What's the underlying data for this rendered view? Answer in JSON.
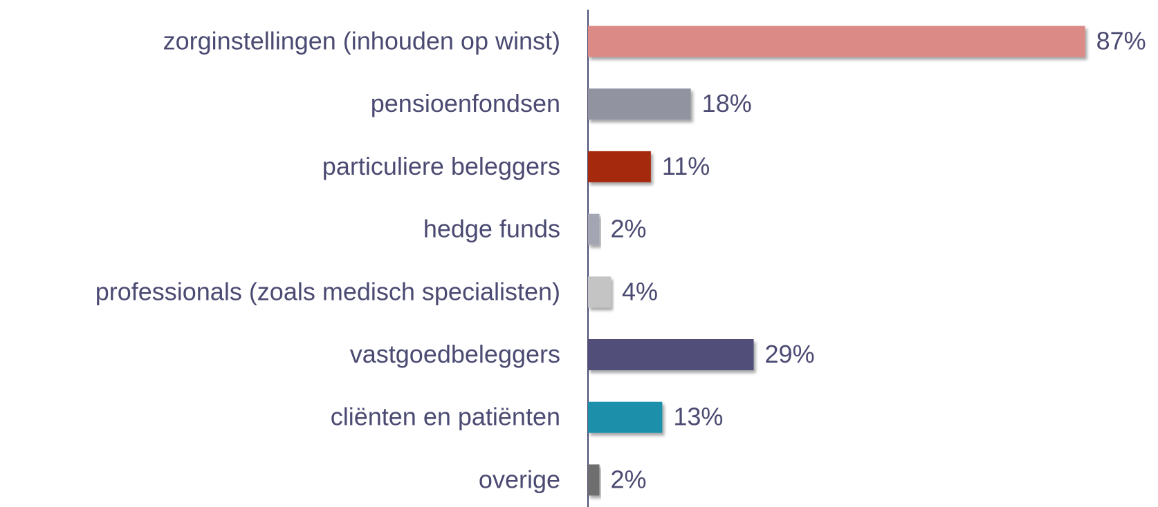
{
  "chart_data": {
    "type": "bar",
    "orientation": "horizontal",
    "categories": [
      "zorginstellingen (inhouden op winst)",
      "pensioenfondsen",
      "particuliere beleggers",
      "hedge funds",
      "professionals (zoals medisch specialisten)",
      "vastgoedbeleggers",
      "cliënten en patiënten",
      "overige"
    ],
    "values": [
      87,
      18,
      11,
      2,
      4,
      29,
      13,
      2
    ],
    "value_labels": [
      "87%",
      "18%",
      "11%",
      "2%",
      "4%",
      "29%",
      "13%",
      "2%"
    ],
    "colors": [
      "#db8a85",
      "#9194a0",
      "#a52a0a",
      "#a4a5b3",
      "#c4c4c4",
      "#515079",
      "#1e8faa",
      "#6e6e6e"
    ],
    "xlim": [
      0,
      100
    ]
  }
}
